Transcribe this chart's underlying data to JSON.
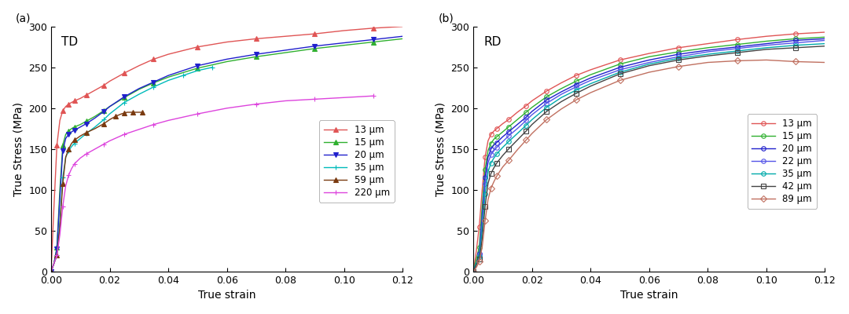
{
  "title_a": "TD",
  "title_b": "RD",
  "xlabel": "True strain",
  "ylabel": "True Stress (MPa)",
  "xlim": [
    0.0,
    0.12
  ],
  "ylim": [
    0,
    300
  ],
  "label_a": "(a)",
  "label_b": "(b)",
  "bg_color": "#f5f5f0",
  "td": {
    "series": [
      {
        "label": "13 μm",
        "color": "#e05555",
        "marker": "^",
        "marker_filled": true,
        "strain": [
          0.0,
          0.001,
          0.002,
          0.003,
          0.004,
          0.005,
          0.006,
          0.007,
          0.008,
          0.01,
          0.012,
          0.015,
          0.018,
          0.02,
          0.025,
          0.03,
          0.035,
          0.04,
          0.05,
          0.06,
          0.07,
          0.08,
          0.09,
          0.1,
          0.11,
          0.12
        ],
        "stress": [
          0,
          80,
          155,
          185,
          197,
          202,
          205,
          207,
          209,
          212,
          216,
          222,
          228,
          233,
          243,
          252,
          260,
          266,
          275,
          281,
          285,
          288,
          291,
          295,
          298,
          300
        ]
      },
      {
        "label": "15 μm",
        "color": "#30b030",
        "marker": "^",
        "marker_filled": true,
        "strain": [
          0.0,
          0.001,
          0.002,
          0.003,
          0.004,
          0.005,
          0.006,
          0.007,
          0.008,
          0.01,
          0.012,
          0.015,
          0.018,
          0.02,
          0.025,
          0.03,
          0.035,
          0.04,
          0.05,
          0.06,
          0.07,
          0.08,
          0.09,
          0.1,
          0.11,
          0.12
        ],
        "stress": [
          0,
          10,
          30,
          100,
          155,
          168,
          172,
          175,
          177,
          180,
          184,
          190,
          197,
          202,
          213,
          223,
          231,
          238,
          249,
          257,
          263,
          268,
          273,
          277,
          281,
          285
        ]
      },
      {
        "label": "20 μm",
        "color": "#2020cc",
        "marker": "v",
        "marker_filled": true,
        "strain": [
          0.0,
          0.001,
          0.002,
          0.003,
          0.004,
          0.005,
          0.006,
          0.007,
          0.008,
          0.01,
          0.012,
          0.015,
          0.018,
          0.02,
          0.025,
          0.03,
          0.035,
          0.04,
          0.05,
          0.06,
          0.07,
          0.08,
          0.09,
          0.1,
          0.11,
          0.12
        ],
        "stress": [
          0,
          10,
          28,
          90,
          148,
          163,
          168,
          171,
          173,
          177,
          181,
          188,
          196,
          202,
          214,
          224,
          232,
          240,
          252,
          260,
          266,
          271,
          276,
          280,
          284,
          288
        ]
      },
      {
        "label": "35 μm",
        "color": "#00bbbb",
        "marker": "+",
        "marker_filled": true,
        "strain": [
          0.0,
          0.001,
          0.002,
          0.003,
          0.004,
          0.005,
          0.006,
          0.007,
          0.008,
          0.01,
          0.012,
          0.015,
          0.018,
          0.02,
          0.025,
          0.03,
          0.035,
          0.04,
          0.045,
          0.05,
          0.055
        ],
        "stress": [
          0,
          10,
          20,
          60,
          115,
          140,
          148,
          153,
          157,
          163,
          169,
          177,
          186,
          193,
          207,
          217,
          226,
          234,
          240,
          246,
          250
        ]
      },
      {
        "label": "59 μm",
        "color": "#7a3a10",
        "marker": "^",
        "marker_filled": true,
        "strain": [
          0.0,
          0.001,
          0.002,
          0.003,
          0.004,
          0.005,
          0.006,
          0.007,
          0.008,
          0.01,
          0.012,
          0.015,
          0.018,
          0.02,
          0.022,
          0.024,
          0.025,
          0.026,
          0.028,
          0.03,
          0.031
        ],
        "stress": [
          0,
          10,
          20,
          55,
          108,
          140,
          150,
          157,
          161,
          166,
          170,
          175,
          181,
          186,
          190,
          193,
          194,
          195,
          195,
          195,
          195
        ]
      },
      {
        "label": "220 μm",
        "color": "#dd44dd",
        "marker": "+",
        "marker_filled": true,
        "strain": [
          0.0,
          0.001,
          0.002,
          0.003,
          0.004,
          0.005,
          0.006,
          0.007,
          0.008,
          0.01,
          0.012,
          0.015,
          0.018,
          0.02,
          0.025,
          0.03,
          0.035,
          0.04,
          0.05,
          0.06,
          0.07,
          0.08,
          0.09,
          0.1,
          0.11
        ],
        "stress": [
          0,
          10,
          20,
          45,
          80,
          105,
          118,
          126,
          132,
          139,
          144,
          150,
          156,
          160,
          168,
          174,
          180,
          185,
          193,
          200,
          205,
          209,
          211,
          213,
          215
        ]
      }
    ]
  },
  "rd": {
    "series": [
      {
        "label": "13 μm",
        "color": "#e05555",
        "marker": "o",
        "marker_filled": false,
        "strain": [
          0.0,
          0.001,
          0.002,
          0.003,
          0.004,
          0.005,
          0.006,
          0.007,
          0.008,
          0.01,
          0.012,
          0.015,
          0.018,
          0.02,
          0.025,
          0.03,
          0.035,
          0.04,
          0.05,
          0.06,
          0.07,
          0.08,
          0.09,
          0.1,
          0.11,
          0.12
        ],
        "stress": [
          0,
          25,
          55,
          100,
          140,
          160,
          168,
          172,
          175,
          181,
          186,
          195,
          203,
          209,
          221,
          231,
          240,
          247,
          259,
          267,
          274,
          279,
          284,
          288,
          291,
          293
        ]
      },
      {
        "label": "15 μm",
        "color": "#30b030",
        "marker": "o",
        "marker_filled": false,
        "strain": [
          0.0,
          0.001,
          0.002,
          0.003,
          0.004,
          0.005,
          0.006,
          0.007,
          0.008,
          0.01,
          0.012,
          0.015,
          0.018,
          0.02,
          0.025,
          0.03,
          0.035,
          0.04,
          0.05,
          0.06,
          0.07,
          0.08,
          0.09,
          0.1,
          0.11,
          0.12
        ],
        "stress": [
          0,
          15,
          30,
          80,
          125,
          148,
          157,
          162,
          165,
          171,
          177,
          186,
          195,
          201,
          214,
          224,
          233,
          241,
          254,
          263,
          269,
          274,
          278,
          282,
          285,
          287
        ]
      },
      {
        "label": "20 μm",
        "color": "#2020cc",
        "marker": "o",
        "marker_filled": false,
        "strain": [
          0.0,
          0.001,
          0.002,
          0.003,
          0.004,
          0.005,
          0.006,
          0.007,
          0.008,
          0.01,
          0.012,
          0.015,
          0.018,
          0.02,
          0.025,
          0.03,
          0.035,
          0.04,
          0.05,
          0.06,
          0.07,
          0.08,
          0.09,
          0.1,
          0.11,
          0.12
        ],
        "stress": [
          0,
          10,
          22,
          68,
          115,
          140,
          150,
          155,
          158,
          165,
          171,
          180,
          189,
          196,
          210,
          220,
          229,
          237,
          250,
          259,
          266,
          271,
          275,
          279,
          283,
          285
        ]
      },
      {
        "label": "22 μm",
        "color": "#5555e8",
        "marker": "o",
        "marker_filled": false,
        "strain": [
          0.0,
          0.001,
          0.002,
          0.003,
          0.004,
          0.005,
          0.006,
          0.007,
          0.008,
          0.01,
          0.012,
          0.015,
          0.018,
          0.02,
          0.025,
          0.03,
          0.035,
          0.04,
          0.05,
          0.06,
          0.07,
          0.08,
          0.09,
          0.1,
          0.11,
          0.12
        ],
        "stress": [
          0,
          10,
          20,
          60,
          108,
          133,
          143,
          148,
          152,
          159,
          166,
          175,
          185,
          192,
          206,
          217,
          226,
          234,
          247,
          256,
          263,
          269,
          273,
          277,
          280,
          283
        ]
      },
      {
        "label": "35 μm",
        "color": "#00aaaa",
        "marker": "o",
        "marker_filled": false,
        "strain": [
          0.0,
          0.001,
          0.002,
          0.003,
          0.004,
          0.005,
          0.006,
          0.007,
          0.008,
          0.01,
          0.012,
          0.015,
          0.018,
          0.02,
          0.025,
          0.03,
          0.035,
          0.04,
          0.05,
          0.06,
          0.07,
          0.08,
          0.09,
          0.1,
          0.11,
          0.12
        ],
        "stress": [
          0,
          10,
          18,
          50,
          95,
          122,
          133,
          139,
          144,
          152,
          159,
          169,
          179,
          186,
          201,
          213,
          222,
          230,
          244,
          254,
          261,
          266,
          270,
          274,
          277,
          279
        ]
      },
      {
        "label": "42 μm",
        "color": "#444444",
        "marker": "s",
        "marker_filled": false,
        "strain": [
          0.0,
          0.001,
          0.002,
          0.003,
          0.004,
          0.005,
          0.006,
          0.007,
          0.008,
          0.01,
          0.012,
          0.015,
          0.018,
          0.02,
          0.025,
          0.03,
          0.035,
          0.04,
          0.05,
          0.06,
          0.07,
          0.08,
          0.09,
          0.1,
          0.11,
          0.12
        ],
        "stress": [
          0,
          8,
          15,
          40,
          80,
          108,
          120,
          127,
          133,
          142,
          150,
          161,
          172,
          180,
          196,
          208,
          218,
          227,
          242,
          252,
          259,
          264,
          268,
          272,
          274,
          276
        ]
      },
      {
        "label": "89 μm",
        "color": "#c07060",
        "marker": "D",
        "marker_filled": false,
        "strain": [
          0.0,
          0.001,
          0.002,
          0.003,
          0.004,
          0.005,
          0.006,
          0.007,
          0.008,
          0.01,
          0.012,
          0.015,
          0.018,
          0.02,
          0.025,
          0.03,
          0.035,
          0.04,
          0.05,
          0.06,
          0.07,
          0.08,
          0.09,
          0.1,
          0.11,
          0.12
        ],
        "stress": [
          0,
          5,
          12,
          30,
          62,
          88,
          102,
          110,
          117,
          128,
          136,
          149,
          161,
          169,
          186,
          199,
          210,
          219,
          234,
          244,
          251,
          256,
          258,
          259,
          257,
          256
        ]
      }
    ]
  }
}
